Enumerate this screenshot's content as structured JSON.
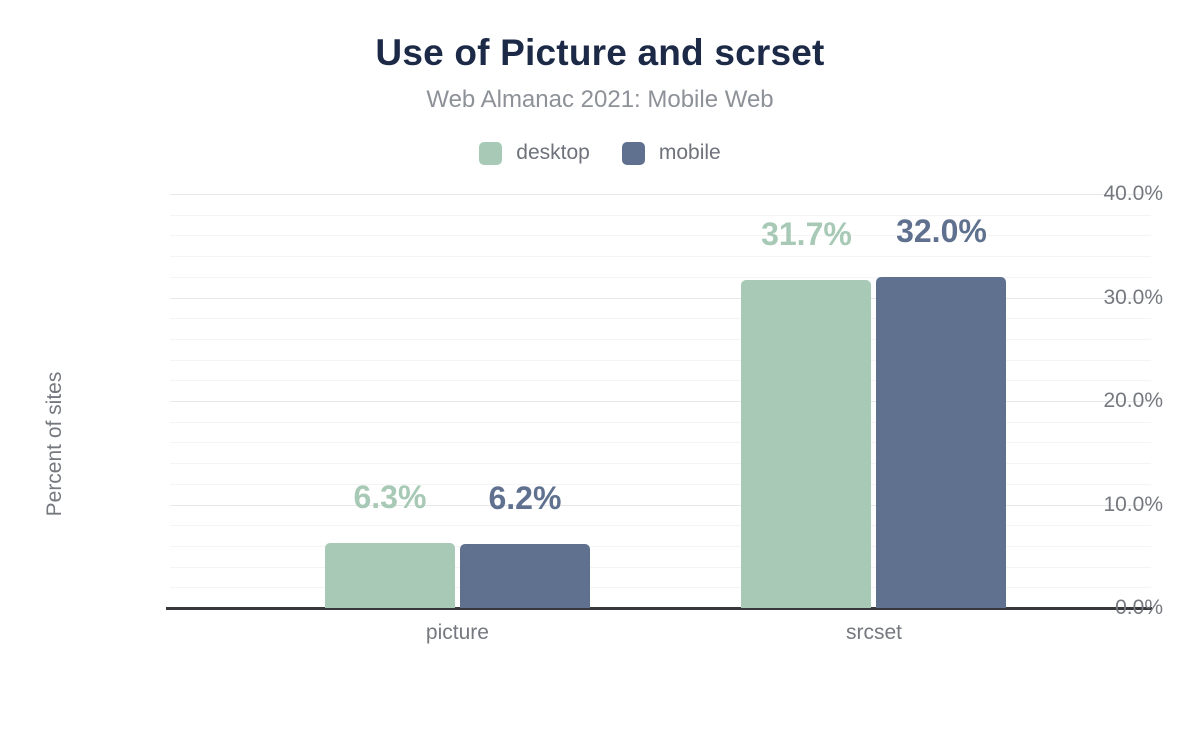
{
  "header": {
    "title": "Use of Picture and scrset",
    "subtitle": "Web Almanac 2021: Mobile Web"
  },
  "chart_data": {
    "type": "bar",
    "title": "Use of Picture and scrset",
    "subtitle": "Web Almanac 2021: Mobile Web",
    "categories": [
      "picture",
      "srcset"
    ],
    "series": [
      {
        "name": "desktop",
        "color": "#a7c9b6",
        "values": [
          6.3,
          31.7
        ],
        "value_labels": [
          "6.3%",
          "31.7%"
        ]
      },
      {
        "name": "mobile",
        "color": "#5f718f",
        "values": [
          6.2,
          32.0
        ],
        "value_labels": [
          "6.2%",
          "32.0%"
        ]
      }
    ],
    "xlabel": "",
    "ylabel": "Percent of sites",
    "ylim": [
      0,
      40
    ],
    "yticks": [
      {
        "value": 0,
        "label": "0.0%"
      },
      {
        "value": 10,
        "label": "10.0%"
      },
      {
        "value": 20,
        "label": "20.0%"
      },
      {
        "value": 30,
        "label": "30.0%"
      },
      {
        "value": 40,
        "label": "40.0%"
      }
    ],
    "minor_grid_step": 2,
    "major_grid_step": 10,
    "grid": true,
    "legend_position": "top"
  },
  "colors": {
    "title": "#1c2a47",
    "subtitle": "#8d9198",
    "axis_text": "#75797f",
    "axis_line": "#37393d",
    "grid_major": "#e7e8ea",
    "grid_minor": "#f4f4f5",
    "background": "#ffffff"
  }
}
